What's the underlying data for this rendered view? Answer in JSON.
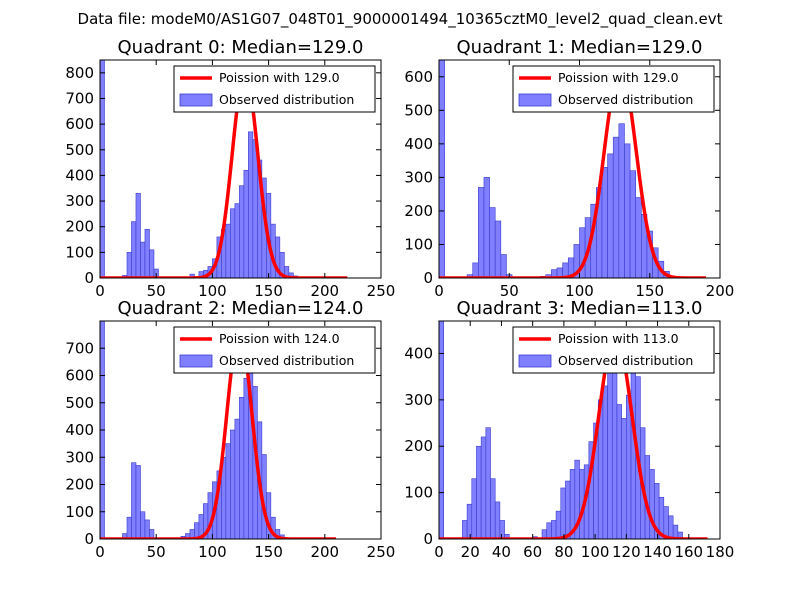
{
  "suptitle": "Data file: modeM0/AS1G07_048T01_9000001494_10365cztM0_level2_quad_clean.evt",
  "colors": {
    "bar_fill": "#7f7fff",
    "bar_edge": "#3a3ad0",
    "line": "#ff0000"
  },
  "chart_data": [
    {
      "type": "bar",
      "title": "Quadrant 0: Median=129.0",
      "xlim": [
        0,
        250
      ],
      "ylim": [
        0,
        850
      ],
      "xticks": [
        0,
        50,
        100,
        150,
        200,
        250
      ],
      "yticks": [
        0,
        100,
        200,
        300,
        400,
        500,
        600,
        700,
        800
      ],
      "x_tick_labels": [
        "0",
        "50",
        "100",
        "150",
        "200",
        "250"
      ],
      "y_tick_labels": [
        "0",
        "100",
        "200",
        "300",
        "400",
        "500",
        "600",
        "700",
        "800"
      ],
      "legend": [
        "Poission with 129.0",
        "Observed distribution"
      ],
      "bin_width": 4,
      "bins": [
        [
          0,
          850
        ],
        [
          20,
          10
        ],
        [
          24,
          100
        ],
        [
          28,
          220
        ],
        [
          32,
          330
        ],
        [
          36,
          140
        ],
        [
          40,
          190
        ],
        [
          44,
          110
        ],
        [
          48,
          35
        ],
        [
          80,
          15
        ],
        [
          88,
          25
        ],
        [
          92,
          30
        ],
        [
          96,
          45
        ],
        [
          100,
          75
        ],
        [
          104,
          160
        ],
        [
          108,
          190
        ],
        [
          112,
          210
        ],
        [
          116,
          270
        ],
        [
          120,
          290
        ],
        [
          124,
          360
        ],
        [
          128,
          420
        ],
        [
          132,
          570
        ],
        [
          136,
          540
        ],
        [
          140,
          460
        ],
        [
          144,
          390
        ],
        [
          148,
          330
        ],
        [
          152,
          210
        ],
        [
          156,
          160
        ],
        [
          160,
          100
        ],
        [
          164,
          45
        ],
        [
          168,
          20
        ],
        [
          172,
          8
        ]
      ],
      "series_line": {
        "name": "Poission with 129.0",
        "mean": 129,
        "peak": 800,
        "sigma": 11.36,
        "x_range": [
          0,
          220
        ]
      }
    },
    {
      "type": "bar",
      "title": "Quadrant 1: Median=129.0",
      "xlim": [
        0,
        200
      ],
      "ylim": [
        0,
        650
      ],
      "xticks": [
        0,
        50,
        100,
        150,
        200
      ],
      "yticks": [
        0,
        100,
        200,
        300,
        400,
        500,
        600
      ],
      "x_tick_labels": [
        "0",
        "50",
        "100",
        "150",
        "200"
      ],
      "y_tick_labels": [
        "0",
        "100",
        "200",
        "300",
        "400",
        "500",
        "600"
      ],
      "legend": [
        "Poission with 129.0",
        "Observed distribution"
      ],
      "bin_width": 4,
      "bins": [
        [
          0,
          650
        ],
        [
          20,
          10
        ],
        [
          24,
          45
        ],
        [
          28,
          270
        ],
        [
          32,
          300
        ],
        [
          36,
          210
        ],
        [
          40,
          170
        ],
        [
          44,
          70
        ],
        [
          48,
          10
        ],
        [
          72,
          5
        ],
        [
          76,
          10
        ],
        [
          80,
          25
        ],
        [
          84,
          30
        ],
        [
          88,
          45
        ],
        [
          92,
          60
        ],
        [
          96,
          100
        ],
        [
          100,
          150
        ],
        [
          104,
          180
        ],
        [
          108,
          220
        ],
        [
          112,
          270
        ],
        [
          116,
          330
        ],
        [
          120,
          370
        ],
        [
          124,
          420
        ],
        [
          128,
          460
        ],
        [
          132,
          400
        ],
        [
          136,
          320
        ],
        [
          140,
          240
        ],
        [
          144,
          190
        ],
        [
          148,
          140
        ],
        [
          152,
          90
        ],
        [
          156,
          50
        ],
        [
          160,
          20
        ]
      ],
      "series_line": {
        "name": "Poission with 129.0",
        "mean": 129,
        "peak": 625,
        "sigma": 11.36,
        "x_range": [
          0,
          190
        ]
      }
    },
    {
      "type": "bar",
      "title": "Quadrant 2: Median=124.0",
      "xlim": [
        0,
        250
      ],
      "ylim": [
        0,
        800
      ],
      "xticks": [
        0,
        50,
        100,
        150,
        200,
        250
      ],
      "yticks": [
        0,
        100,
        200,
        300,
        400,
        500,
        600,
        700
      ],
      "x_tick_labels": [
        "0",
        "50",
        "100",
        "150",
        "200",
        "250"
      ],
      "y_tick_labels": [
        "0",
        "100",
        "200",
        "300",
        "400",
        "500",
        "600",
        "700"
      ],
      "legend": [
        "Poission with 124.0",
        "Observed distribution"
      ],
      "bin_width": 4,
      "bins": [
        [
          0,
          800
        ],
        [
          20,
          20
        ],
        [
          24,
          80
        ],
        [
          28,
          280
        ],
        [
          32,
          270
        ],
        [
          36,
          100
        ],
        [
          40,
          70
        ],
        [
          44,
          35
        ],
        [
          72,
          10
        ],
        [
          76,
          20
        ],
        [
          80,
          35
        ],
        [
          84,
          60
        ],
        [
          88,
          90
        ],
        [
          92,
          130
        ],
        [
          96,
          170
        ],
        [
          100,
          210
        ],
        [
          104,
          250
        ],
        [
          108,
          300
        ],
        [
          112,
          350
        ],
        [
          116,
          400
        ],
        [
          120,
          440
        ],
        [
          124,
          520
        ],
        [
          128,
          590
        ],
        [
          132,
          620
        ],
        [
          136,
          560
        ],
        [
          140,
          430
        ],
        [
          144,
          310
        ],
        [
          148,
          170
        ],
        [
          152,
          80
        ],
        [
          156,
          35
        ],
        [
          160,
          15
        ]
      ],
      "series_line": {
        "name": "Poission with 124.0",
        "mean": 124,
        "peak": 760,
        "sigma": 11.14,
        "x_range": [
          0,
          210
        ]
      }
    },
    {
      "type": "bar",
      "title": "Quadrant 3: Median=113.0",
      "xlim": [
        0,
        180
      ],
      "ylim": [
        0,
        470
      ],
      "xticks": [
        0,
        20,
        40,
        60,
        80,
        100,
        120,
        140,
        160,
        180
      ],
      "yticks": [
        0,
        100,
        200,
        300,
        400
      ],
      "x_tick_labels": [
        "0",
        "20",
        "40",
        "60",
        "80",
        "100",
        "120",
        "140",
        "160",
        "180"
      ],
      "y_tick_labels": [
        "0",
        "100",
        "200",
        "300",
        "400"
      ],
      "legend": [
        "Poission with 113.0",
        "Observed distribution"
      ],
      "bin_width": 3,
      "bins": [
        [
          0,
          470
        ],
        [
          15,
          40
        ],
        [
          18,
          75
        ],
        [
          21,
          130
        ],
        [
          24,
          200
        ],
        [
          27,
          220
        ],
        [
          30,
          240
        ],
        [
          33,
          130
        ],
        [
          36,
          80
        ],
        [
          39,
          40
        ],
        [
          42,
          10
        ],
        [
          60,
          5
        ],
        [
          66,
          20
        ],
        [
          69,
          35
        ],
        [
          72,
          40
        ],
        [
          75,
          60
        ],
        [
          78,
          110
        ],
        [
          81,
          125
        ],
        [
          84,
          150
        ],
        [
          87,
          170
        ],
        [
          90,
          150
        ],
        [
          93,
          160
        ],
        [
          96,
          210
        ],
        [
          99,
          250
        ],
        [
          102,
          300
        ],
        [
          105,
          330
        ],
        [
          108,
          360
        ],
        [
          111,
          400
        ],
        [
          114,
          290
        ],
        [
          117,
          260
        ],
        [
          120,
          310
        ],
        [
          123,
          420
        ],
        [
          126,
          350
        ],
        [
          129,
          240
        ],
        [
          132,
          180
        ],
        [
          135,
          150
        ],
        [
          138,
          120
        ],
        [
          141,
          90
        ],
        [
          144,
          70
        ],
        [
          147,
          50
        ],
        [
          150,
          30
        ],
        [
          153,
          15
        ]
      ],
      "series_line": {
        "name": "Poission with 113.0",
        "mean": 113,
        "peak": 440,
        "sigma": 10.63,
        "x_range": [
          0,
          172
        ]
      }
    }
  ]
}
